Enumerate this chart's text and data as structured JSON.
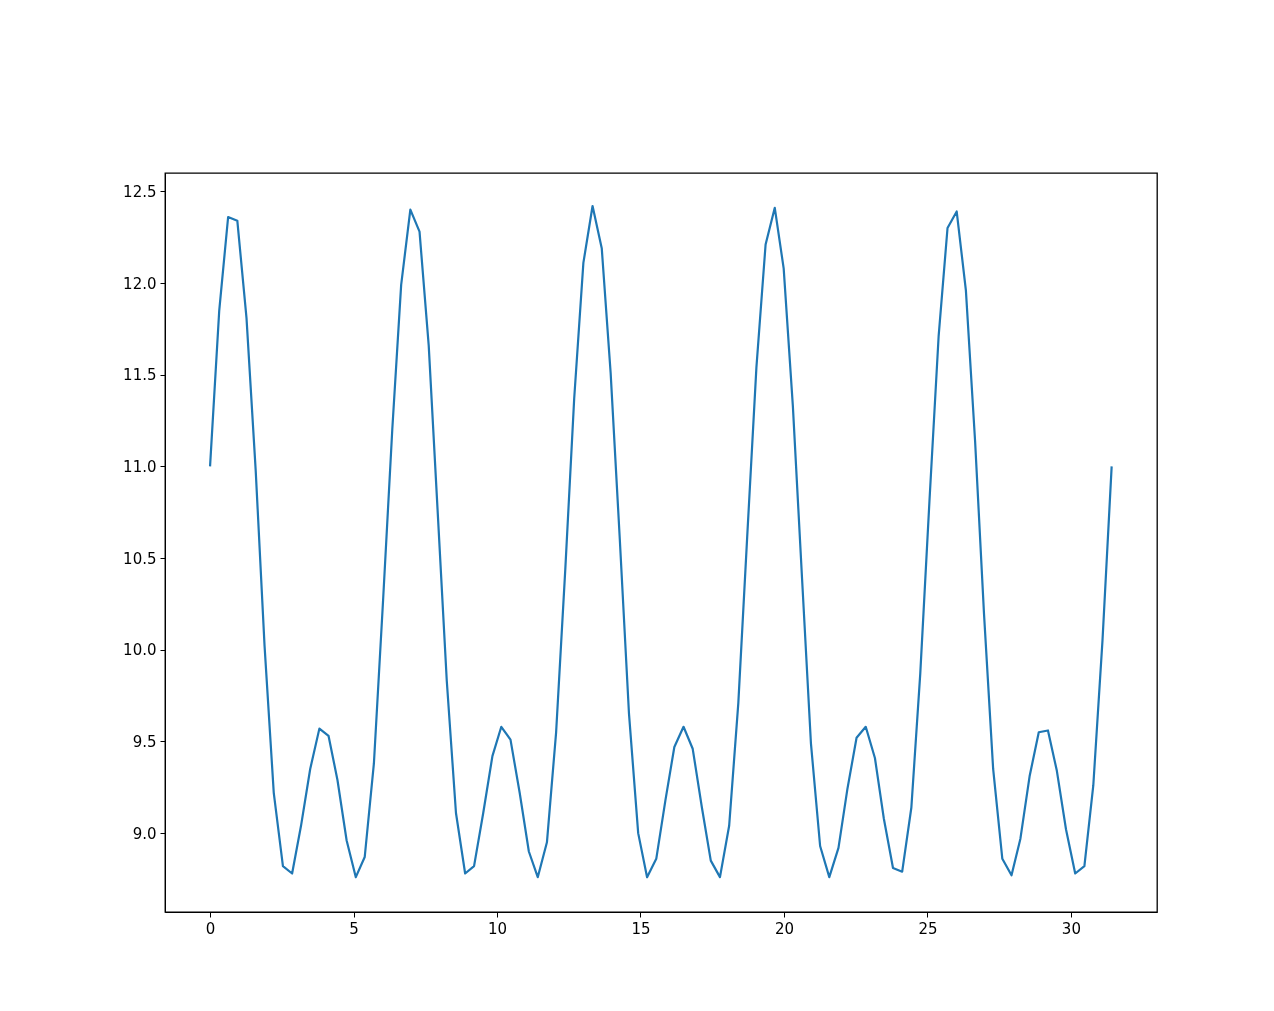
{
  "chart_data": {
    "type": "line",
    "x": [
      0,
      0.32,
      0.63,
      0.95,
      1.27,
      1.59,
      1.9,
      2.22,
      2.54,
      2.86,
      3.17,
      3.49,
      3.81,
      4.13,
      4.44,
      4.76,
      5.08,
      5.39,
      5.71,
      6.03,
      6.35,
      6.66,
      6.98,
      7.3,
      7.62,
      7.93,
      8.25,
      8.57,
      8.89,
      9.2,
      9.52,
      9.84,
      10.15,
      10.47,
      10.79,
      11.11,
      11.42,
      11.74,
      12.06,
      12.38,
      12.69,
      13.01,
      13.33,
      13.65,
      13.96,
      14.28,
      14.6,
      14.92,
      15.23,
      15.55,
      15.87,
      16.18,
      16.5,
      16.82,
      17.14,
      17.45,
      17.77,
      18.09,
      18.41,
      18.72,
      19.04,
      19.36,
      19.68,
      19.99,
      20.31,
      20.63,
      20.94,
      21.26,
      21.58,
      21.9,
      22.21,
      22.53,
      22.85,
      23.17,
      23.48,
      23.8,
      24.12,
      24.44,
      24.75,
      25.07,
      25.39,
      25.7,
      26.02,
      26.34,
      26.66,
      26.97,
      27.29,
      27.61,
      27.93,
      28.24,
      28.56,
      28.88,
      29.2,
      29.51,
      29.83,
      30.15,
      30.47,
      30.78,
      31.1,
      31.42
    ],
    "series": [
      {
        "color": "#1f77b4",
        "values": [
          11.0,
          11.85,
          12.36,
          12.34,
          11.81,
          10.98,
          10.02,
          9.22,
          8.82,
          8.78,
          9.04,
          9.35,
          9.57,
          9.53,
          9.29,
          8.96,
          8.76,
          8.87,
          9.38,
          10.27,
          11.2,
          11.99,
          12.4,
          12.28,
          11.66,
          10.76,
          9.83,
          9.11,
          8.78,
          8.82,
          9.11,
          9.42,
          9.58,
          9.51,
          9.22,
          8.9,
          8.76,
          8.95,
          9.55,
          10.44,
          11.37,
          12.11,
          12.42,
          12.19,
          11.51,
          10.6,
          9.65,
          9.0,
          8.76,
          8.86,
          9.18,
          9.47,
          9.58,
          9.46,
          9.14,
          8.85,
          8.76,
          9.04,
          9.71,
          10.62,
          11.54,
          12.21,
          12.41,
          12.08,
          11.33,
          10.39,
          9.49,
          8.93,
          8.76,
          8.92,
          9.24,
          9.52,
          9.58,
          9.41,
          9.08,
          8.81,
          8.79,
          9.14,
          9.87,
          10.81,
          11.71,
          12.3,
          12.39,
          11.96,
          11.14,
          10.2,
          9.35,
          8.86,
          8.77,
          8.97,
          9.31,
          9.55,
          9.56,
          9.34,
          9.02,
          8.78,
          8.82,
          9.26,
          10.05,
          11.0
        ]
      }
    ],
    "xlim": [
      -1.57,
      33.0
    ],
    "ylim": [
      8.57,
      12.6
    ],
    "xticks": [
      0,
      5,
      10,
      15,
      20,
      25,
      30
    ],
    "yticks": [
      {
        "value": 9,
        "label": "9.0"
      },
      9.5,
      {
        "value": 10,
        "label": "10.0"
      },
      10.5,
      {
        "value": 11,
        "label": "11.0"
      },
      11.5,
      {
        "value": 12,
        "label": "12.0"
      },
      12.5
    ],
    "grid": false
  }
}
